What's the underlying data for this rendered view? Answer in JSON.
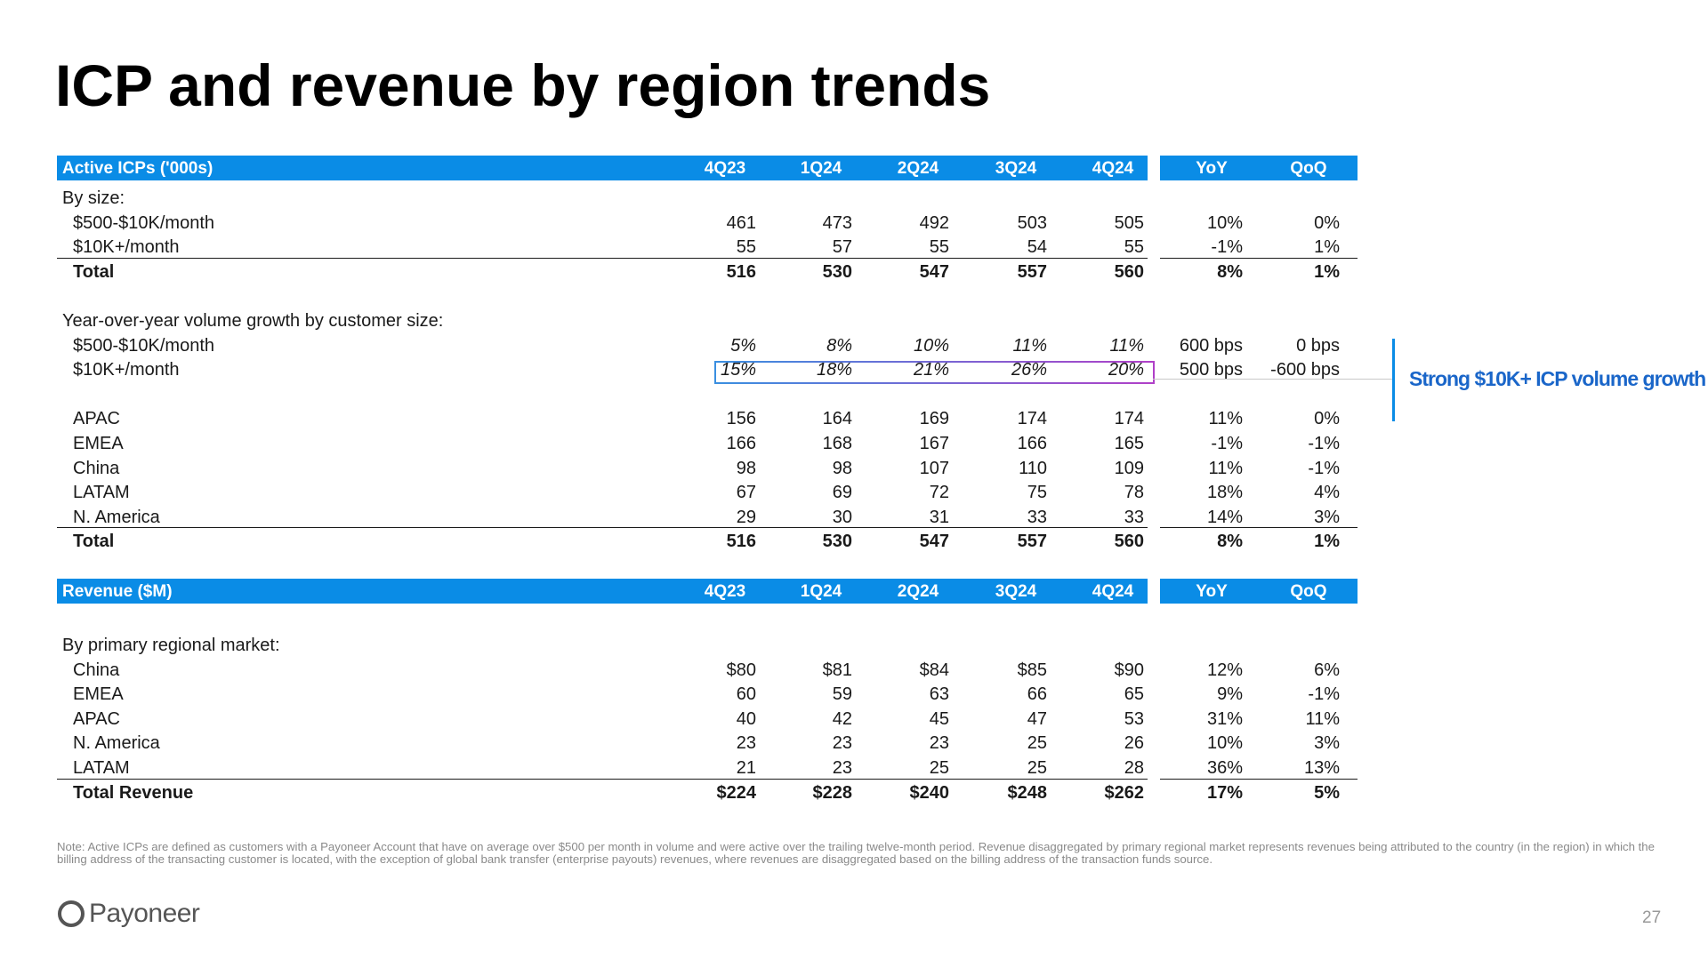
{
  "title": "ICP and revenue by region trends",
  "columns": [
    "4Q23",
    "1Q24",
    "2Q24",
    "3Q24",
    "4Q24"
  ],
  "changes": [
    "YoY",
    "QoQ"
  ],
  "icp": {
    "header": "Active ICPs ('000s)",
    "size_label": "By size:",
    "size_rows": [
      {
        "label": "$500-$10K/month",
        "values": [
          "461",
          "473",
          "492",
          "503",
          "505"
        ],
        "yoy": "10%",
        "qoq": "0%"
      },
      {
        "label": "$10K+/month",
        "values": [
          "55",
          "57",
          "55",
          "54",
          "55"
        ],
        "yoy": "-1%",
        "qoq": "1%"
      }
    ],
    "size_total": {
      "label": "Total",
      "values": [
        "516",
        "530",
        "547",
        "557",
        "560"
      ],
      "yoy": "8%",
      "qoq": "1%"
    },
    "growth_label": "Year-over-year volume growth by customer size:",
    "growth_rows": [
      {
        "label": "$500-$10K/month",
        "values": [
          "5%",
          "8%",
          "10%",
          "11%",
          "11%"
        ],
        "yoy": "600 bps",
        "qoq": "0 bps"
      },
      {
        "label": "$10K+/month",
        "values": [
          "15%",
          "18%",
          "21%",
          "26%",
          "20%"
        ],
        "yoy": "500 bps",
        "qoq": "-600 bps"
      }
    ],
    "region_rows": [
      {
        "label": "APAC",
        "values": [
          "156",
          "164",
          "169",
          "174",
          "174"
        ],
        "yoy": "11%",
        "qoq": "0%"
      },
      {
        "label": "EMEA",
        "values": [
          "166",
          "168",
          "167",
          "166",
          "165"
        ],
        "yoy": "-1%",
        "qoq": "-1%"
      },
      {
        "label": "China",
        "values": [
          "98",
          "98",
          "107",
          "110",
          "109"
        ],
        "yoy": "11%",
        "qoq": "-1%"
      },
      {
        "label": "LATAM",
        "values": [
          "67",
          "69",
          "72",
          "75",
          "78"
        ],
        "yoy": "18%",
        "qoq": "4%"
      },
      {
        "label": "N. America",
        "values": [
          "29",
          "30",
          "31",
          "33",
          "33"
        ],
        "yoy": "14%",
        "qoq": "3%"
      }
    ],
    "region_total": {
      "label": "Total",
      "values": [
        "516",
        "530",
        "547",
        "557",
        "560"
      ],
      "yoy": "8%",
      "qoq": "1%"
    }
  },
  "revenue": {
    "header": "Revenue ($M)",
    "market_label": "By primary regional market:",
    "rows": [
      {
        "label": "China",
        "values": [
          "$80",
          "$81",
          "$84",
          "$85",
          "$90"
        ],
        "yoy": "12%",
        "qoq": "6%"
      },
      {
        "label": "EMEA",
        "values": [
          "60",
          "59",
          "63",
          "66",
          "65"
        ],
        "yoy": "9%",
        "qoq": "-1%"
      },
      {
        "label": "APAC",
        "values": [
          "40",
          "42",
          "45",
          "47",
          "53"
        ],
        "yoy": "31%",
        "qoq": "11%"
      },
      {
        "label": "N. America",
        "values": [
          "23",
          "23",
          "23",
          "25",
          "26"
        ],
        "yoy": "10%",
        "qoq": "3%"
      },
      {
        "label": "LATAM",
        "values": [
          "21",
          "23",
          "25",
          "25",
          "28"
        ],
        "yoy": "36%",
        "qoq": "13%"
      }
    ],
    "total": {
      "label": "Total Revenue",
      "values": [
        "$224",
        "$228",
        "$240",
        "$248",
        "$262"
      ],
      "yoy": "17%",
      "qoq": "5%"
    }
  },
  "callout": "Strong $10K+ ICP volume growth",
  "note": "Note: Active ICPs are defined as customers with a Payoneer Account that have on average over $500 per month in volume and were active over the trailing twelve-month period. Revenue disaggregated by primary regional market represents revenues being attributed to the country (in the region) in which the billing address of the transacting customer is located, with the exception of global bank transfer (enterprise payouts) revenues, where revenues are disaggregated based on the billing address of the transaction funds source.",
  "logo_text": "Payoneer",
  "logo_icon": "payoneer-ring-icon",
  "page_number": "27",
  "colors": {
    "header_bar": "#0a8ce6",
    "callout": "#1a66c9"
  }
}
